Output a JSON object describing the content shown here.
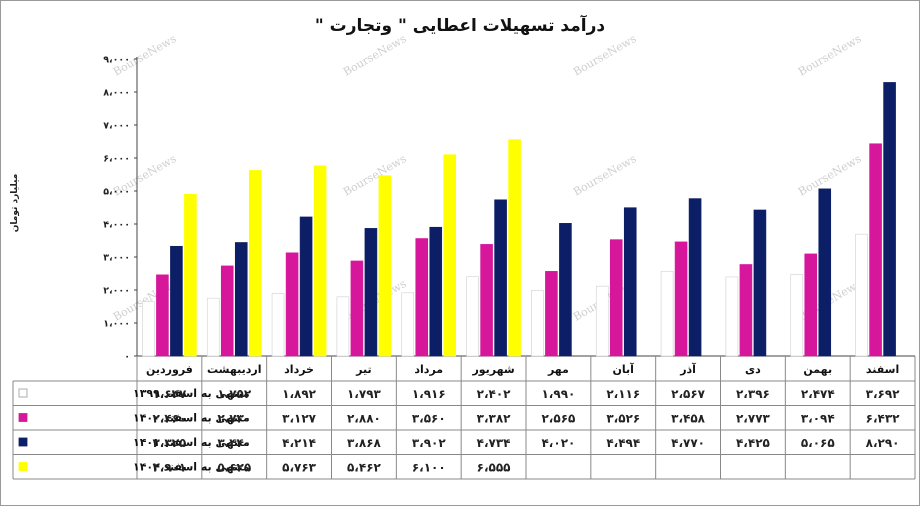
{
  "chart_data": {
    "type": "bar",
    "title": "درآمد تسهیلات اعطایی \" وتجارت \"",
    "ylabel": "میلیارد تومان",
    "ylim": [
      0,
      9000
    ],
    "ytick_values": [
      0,
      1000,
      2000,
      3000,
      4000,
      5000,
      6000,
      7000,
      8000,
      9000
    ],
    "ytick_labels": [
      "۰",
      "۱،۰۰۰",
      "۲،۰۰۰",
      "۳،۰۰۰",
      "۴،۰۰۰",
      "۵،۰۰۰",
      "۶،۰۰۰",
      "۷،۰۰۰",
      "۸،۰۰۰",
      "۹،۰۰۰"
    ],
    "grid": false,
    "legend": "data-table-left",
    "categories": [
      "فروردین",
      "اردیبهشت",
      "خرداد",
      "تیر",
      "مرداد",
      "شهریور",
      "مهر",
      "آبان",
      "آذر",
      "دی",
      "بهمن",
      "اسفند"
    ],
    "series": [
      {
        "name": "منتهی به اسفند ۱۳۹۹",
        "color": "#ffffff",
        "values": [
          1647,
          1752,
          1892,
          1793,
          1916,
          2402,
          1990,
          2116,
          2567,
          2396,
          2474,
          3692
        ],
        "labels": [
          "۱،۶۴۷",
          "۱،۷۵۲",
          "۱،۸۹۲",
          "۱،۷۹۳",
          "۱،۹۱۶",
          "۲،۴۰۲",
          "۱،۹۹۰",
          "۲،۱۱۶",
          "۲،۵۶۷",
          "۲،۳۹۶",
          "۲،۴۷۴",
          "۳،۶۹۲"
        ]
      },
      {
        "name": "منتهی به اسفند ۱۴۰۰",
        "color": "#d6179b",
        "values": [
          2460,
          2730,
          3127,
          2880,
          3560,
          3382,
          2565,
          3526,
          3458,
          2773,
          3094,
          6432
        ],
        "labels": [
          "۲،۴۶۰",
          "۲،۷۳۰",
          "۳،۱۲۷",
          "۲،۸۸۰",
          "۳،۵۶۰",
          "۳،۳۸۲",
          "۲،۵۶۵",
          "۳،۵۲۶",
          "۳،۴۵۸",
          "۲،۷۷۳",
          "۳،۰۹۴",
          "۶،۴۳۲"
        ]
      },
      {
        "name": "منتهی به اسفند ۱۴۰۱",
        "color": "#0c1f66",
        "values": [
          3325,
          3440,
          4214,
          3868,
          3902,
          4734,
          4020,
          4494,
          4770,
          4425,
          5065,
          8290
        ],
        "labels": [
          "۳،۳۲۵",
          "۳،۴۴۰",
          "۴،۲۱۴",
          "۳،۸۶۸",
          "۳،۹۰۲",
          "۴،۷۳۴",
          "۴،۰۲۰",
          "۴،۴۹۴",
          "۴،۷۷۰",
          "۴،۴۲۵",
          "۵،۰۶۵",
          "۸،۲۹۰"
        ]
      },
      {
        "name": "منتهی به اسفند ۱۴۰۲",
        "color": "#ffff00",
        "values": [
          4901,
          5625,
          5763,
          5462,
          6100,
          6555,
          null,
          null,
          null,
          null,
          null,
          null
        ],
        "labels": [
          "۴،۹۰۱",
          "۵،۶۲۵",
          "۵،۷۶۳",
          "۵،۴۶۲",
          "۶،۱۰۰",
          "۶،۵۵۵",
          "",
          "",
          "",
          "",
          "",
          ""
        ]
      }
    ],
    "watermark": "BourseNews"
  }
}
